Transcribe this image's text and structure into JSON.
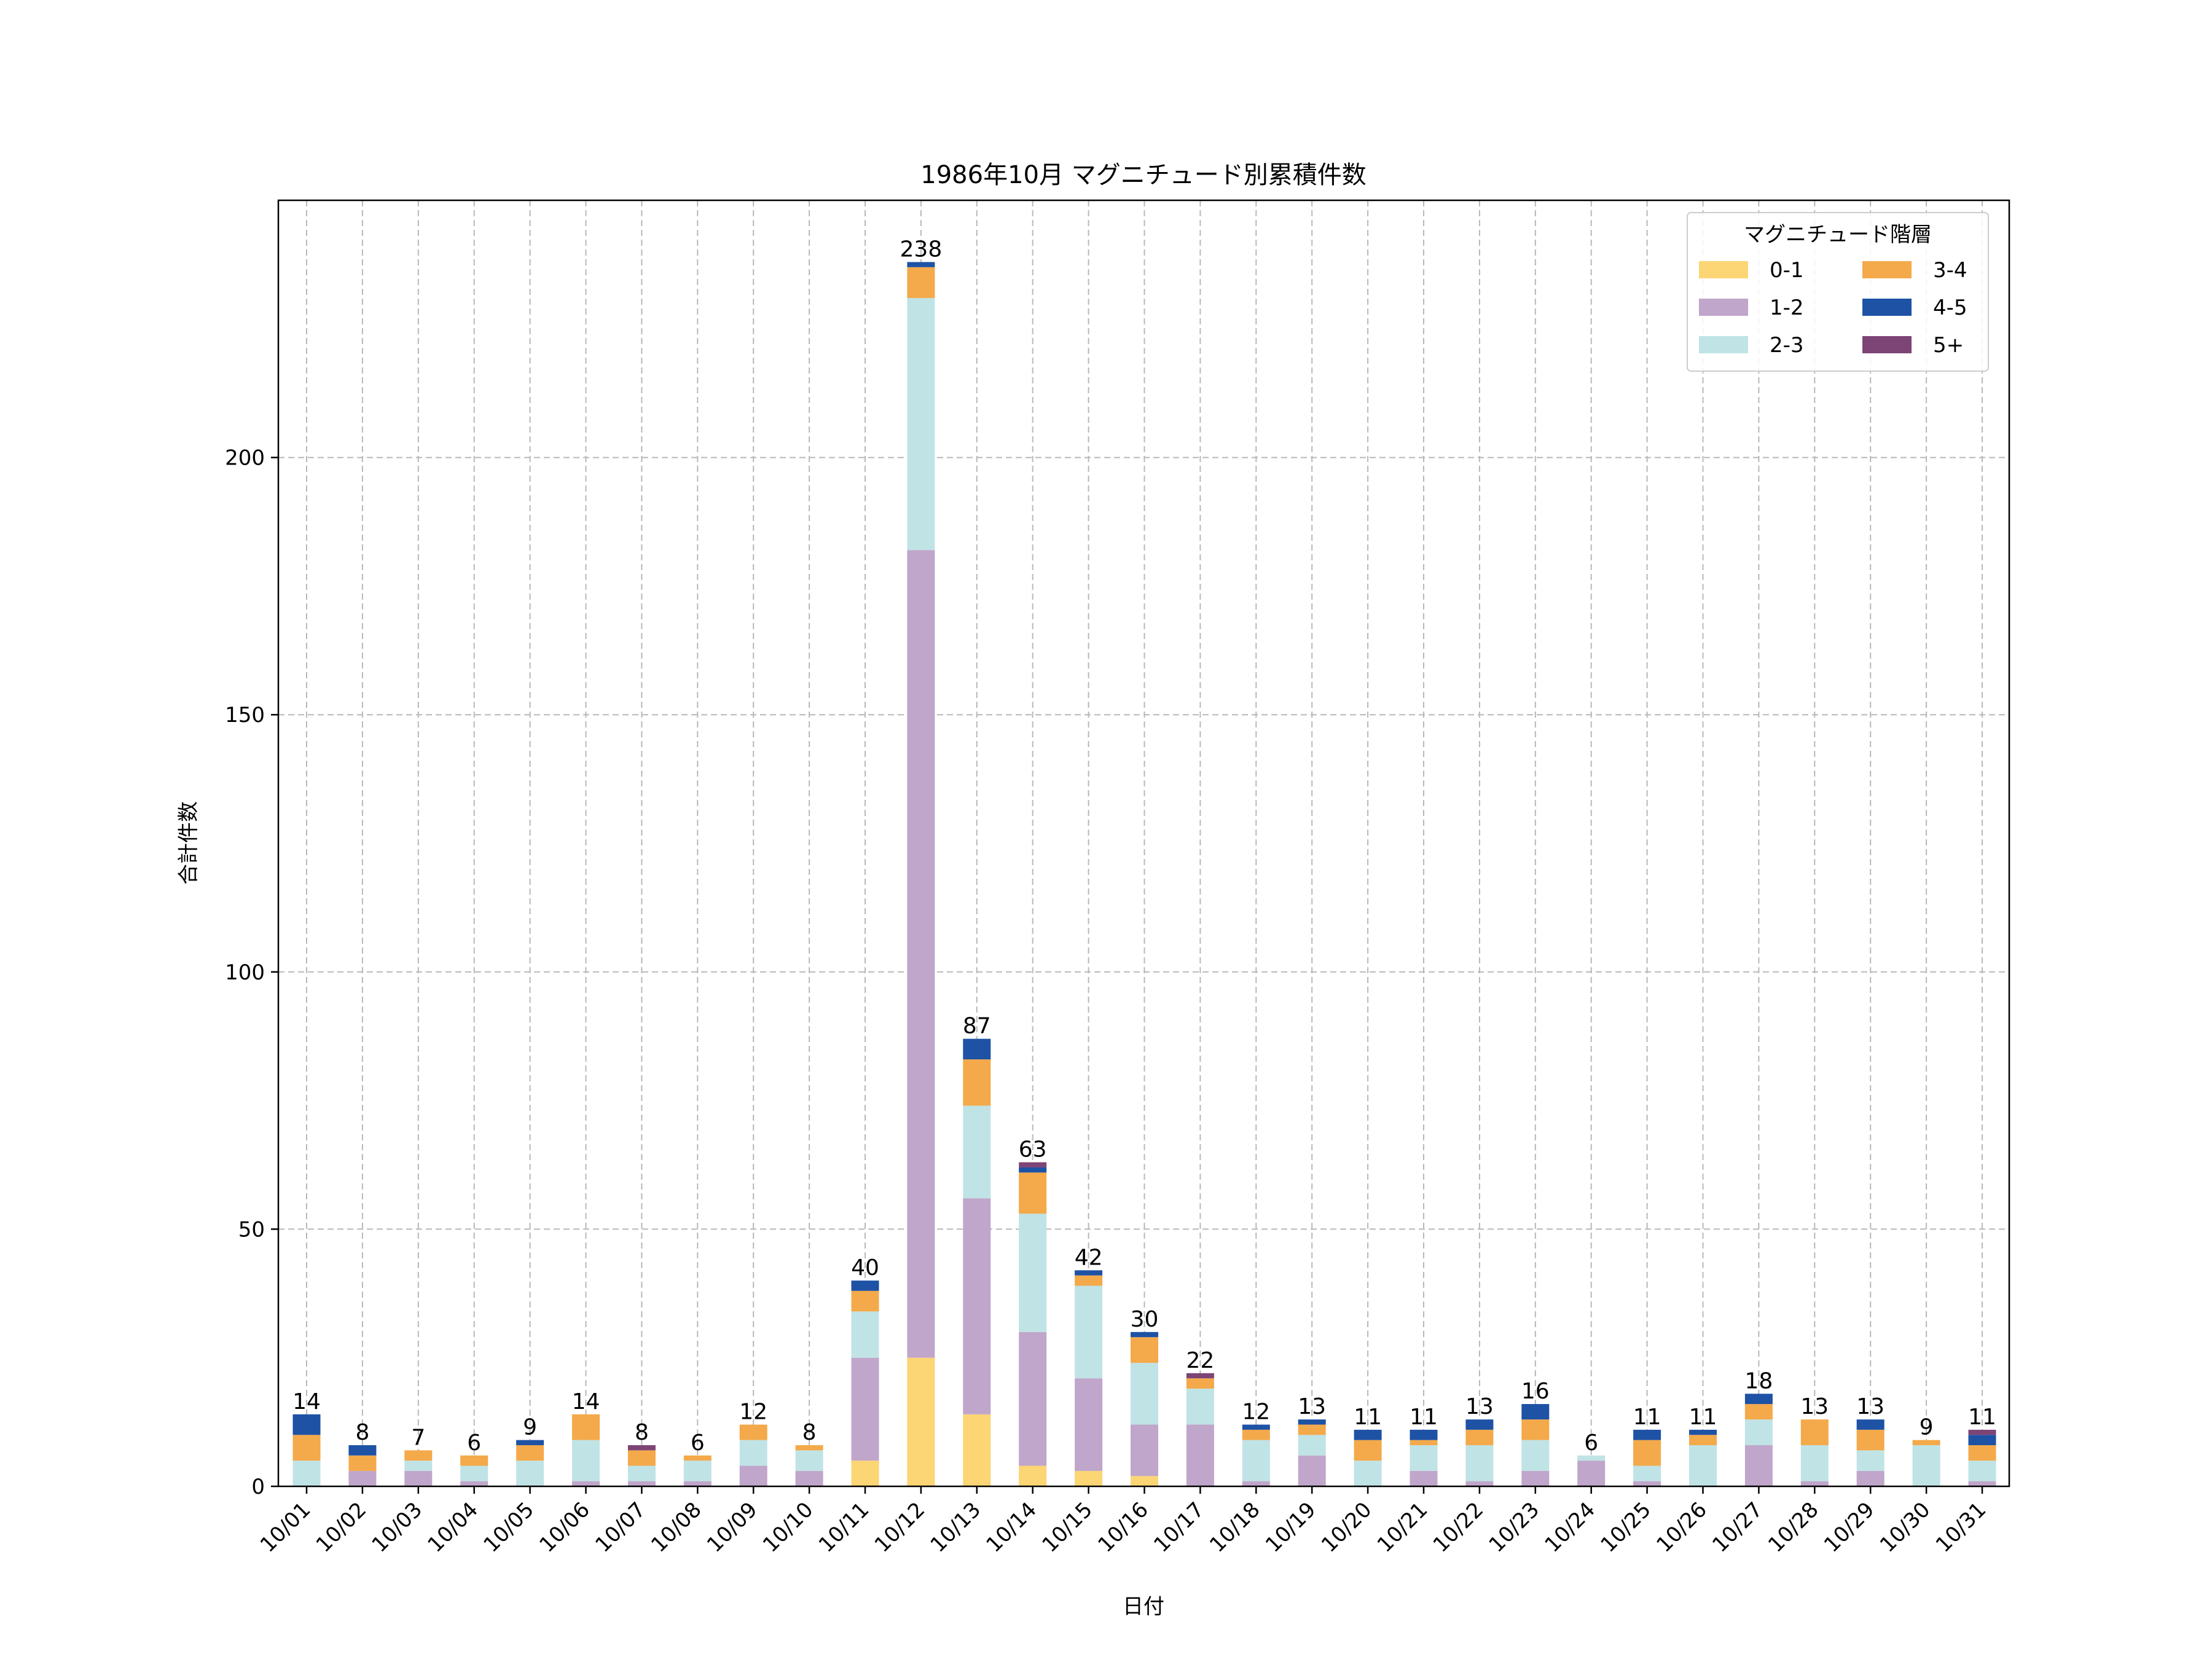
{
  "chart_data": {
    "type": "bar",
    "stacked": true,
    "title": "1986年10月 マグニチュード別累積件数",
    "xlabel": "日付",
    "ylabel": "合計件数",
    "ylim": [
      0,
      250
    ],
    "yticks": [
      0,
      50,
      100,
      150,
      200
    ],
    "grid": true,
    "legend": {
      "title": "マグニチュード階層",
      "placement": "top-right",
      "ncol": 2
    },
    "categories": [
      "10/01",
      "10/02",
      "10/03",
      "10/04",
      "10/05",
      "10/06",
      "10/07",
      "10/08",
      "10/09",
      "10/10",
      "10/11",
      "10/12",
      "10/13",
      "10/14",
      "10/15",
      "10/16",
      "10/17",
      "10/18",
      "10/19",
      "10/20",
      "10/21",
      "10/22",
      "10/23",
      "10/24",
      "10/25",
      "10/26",
      "10/27",
      "10/28",
      "10/29",
      "10/30",
      "10/31"
    ],
    "series": [
      {
        "name": "0-1",
        "color": "#fcd574",
        "values": [
          0,
          0,
          0,
          0,
          0,
          0,
          0,
          0,
          0,
          0,
          5,
          25,
          14,
          4,
          3,
          2,
          0,
          0,
          0,
          0,
          0,
          0,
          0,
          0,
          0,
          0,
          0,
          0,
          0,
          0,
          0
        ]
      },
      {
        "name": "1-2",
        "color": "#c0a6ca",
        "values": [
          0,
          3,
          3,
          1,
          0,
          1,
          1,
          1,
          4,
          3,
          20,
          157,
          42,
          26,
          18,
          10,
          12,
          1,
          6,
          0,
          3,
          1,
          3,
          5,
          1,
          0,
          8,
          1,
          3,
          0,
          1
        ]
      },
      {
        "name": "2-3",
        "color": "#c0e3e6",
        "values": [
          5,
          0,
          2,
          3,
          5,
          8,
          3,
          4,
          5,
          4,
          9,
          49,
          18,
          23,
          18,
          12,
          7,
          8,
          4,
          5,
          5,
          7,
          6,
          1,
          3,
          8,
          5,
          7,
          4,
          8,
          4
        ]
      },
      {
        "name": "3-4",
        "color": "#f4a94a",
        "values": [
          5,
          3,
          2,
          2,
          3,
          5,
          3,
          1,
          3,
          1,
          4,
          6,
          9,
          8,
          2,
          5,
          2,
          2,
          2,
          4,
          1,
          3,
          4,
          0,
          5,
          2,
          3,
          5,
          4,
          1,
          3
        ]
      },
      {
        "name": "4-5",
        "color": "#1e52a5",
        "values": [
          4,
          2,
          0,
          0,
          1,
          0,
          0,
          0,
          0,
          0,
          2,
          1,
          4,
          1,
          1,
          1,
          0,
          1,
          1,
          2,
          2,
          2,
          3,
          0,
          2,
          1,
          2,
          0,
          2,
          0,
          2
        ]
      },
      {
        "name": "5+",
        "color": "#7d4476",
        "values": [
          0,
          0,
          0,
          0,
          0,
          0,
          1,
          0,
          0,
          0,
          0,
          0,
          0,
          1,
          0,
          0,
          1,
          0,
          0,
          0,
          0,
          0,
          0,
          0,
          0,
          0,
          0,
          0,
          0,
          0,
          1
        ]
      }
    ],
    "totals": [
      14,
      8,
      7,
      6,
      9,
      14,
      8,
      6,
      12,
      8,
      40,
      238,
      87,
      63,
      42,
      30,
      22,
      12,
      13,
      11,
      11,
      13,
      16,
      6,
      11,
      11,
      18,
      13,
      13,
      9,
      11
    ]
  }
}
